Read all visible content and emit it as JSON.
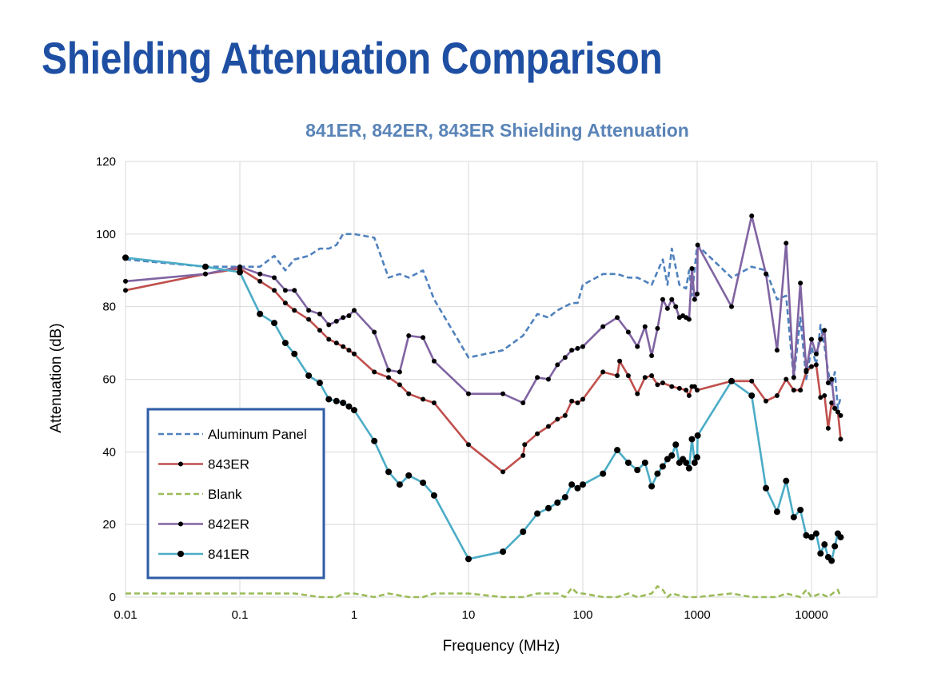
{
  "page": {
    "title": "Shielding Attenuation Comparison"
  },
  "chart_data": {
    "type": "line",
    "title": "841ER, 842ER, 843ER Shielding Attenuation",
    "xlabel": "Frequency (MHz)",
    "ylabel": "Attenuation (dB)",
    "x_scale": "log",
    "xlim": [
      0.01,
      30000
    ],
    "ylim": [
      0,
      120
    ],
    "x_ticks": [
      0.01,
      0.1,
      1,
      10,
      100,
      1000,
      10000
    ],
    "x_tick_labels": [
      "0.01",
      "0.1",
      "1",
      "10",
      "100",
      "1000",
      "10000"
    ],
    "y_ticks": [
      0,
      20,
      40,
      60,
      80,
      100,
      120
    ],
    "y_tick_labels": [
      "0",
      "20",
      "40",
      "60",
      "80",
      "100",
      "120"
    ],
    "grid": true,
    "legend_position": "bottom-left",
    "series": [
      {
        "name": "Aluminum Panel",
        "color": "#4f81bd",
        "style": "dashed",
        "markers": "none",
        "points": [
          [
            0.01,
            93
          ],
          [
            0.05,
            91
          ],
          [
            0.1,
            91
          ],
          [
            0.15,
            91
          ],
          [
            0.2,
            94
          ],
          [
            0.25,
            90
          ],
          [
            0.3,
            93
          ],
          [
            0.4,
            94
          ],
          [
            0.5,
            96
          ],
          [
            0.6,
            96
          ],
          [
            0.7,
            97
          ],
          [
            0.8,
            100
          ],
          [
            1,
            100
          ],
          [
            1.5,
            99
          ],
          [
            2,
            88
          ],
          [
            2.5,
            89
          ],
          [
            3,
            88
          ],
          [
            4,
            90
          ],
          [
            5,
            82
          ],
          [
            10,
            66
          ],
          [
            20,
            68
          ],
          [
            30,
            72
          ],
          [
            40,
            78
          ],
          [
            50,
            77
          ],
          [
            60,
            79
          ],
          [
            80,
            81
          ],
          [
            90,
            81
          ],
          [
            100,
            86
          ],
          [
            150,
            89
          ],
          [
            200,
            89
          ],
          [
            250,
            88
          ],
          [
            300,
            88
          ],
          [
            350,
            87
          ],
          [
            400,
            86
          ],
          [
            500,
            93
          ],
          [
            550,
            86
          ],
          [
            600,
            96
          ],
          [
            700,
            86
          ],
          [
            800,
            85
          ],
          [
            850,
            90
          ],
          [
            900,
            83
          ],
          [
            1000,
            97
          ],
          [
            2000,
            88
          ],
          [
            3000,
            91
          ],
          [
            4000,
            90
          ],
          [
            5000,
            82
          ],
          [
            6000,
            83
          ],
          [
            7000,
            60
          ],
          [
            8000,
            77
          ],
          [
            9000,
            60
          ],
          [
            10000,
            69
          ],
          [
            11000,
            64
          ],
          [
            12000,
            75
          ],
          [
            13000,
            69
          ],
          [
            14000,
            62
          ],
          [
            15000,
            58
          ],
          [
            16000,
            62
          ],
          [
            17000,
            52
          ],
          [
            18000,
            55
          ]
        ]
      },
      {
        "name": "843ER",
        "color": "#c0504d",
        "style": "solid",
        "markers": "small",
        "points": [
          [
            0.01,
            84.5
          ],
          [
            0.05,
            89
          ],
          [
            0.1,
            90.5
          ],
          [
            0.15,
            87
          ],
          [
            0.2,
            84.5
          ],
          [
            0.25,
            81
          ],
          [
            0.3,
            79
          ],
          [
            0.4,
            76.5
          ],
          [
            0.5,
            73.5
          ],
          [
            0.6,
            71
          ],
          [
            0.7,
            70
          ],
          [
            0.8,
            69
          ],
          [
            0.9,
            68
          ],
          [
            1,
            67
          ],
          [
            1.5,
            62
          ],
          [
            2,
            60.5
          ],
          [
            2.5,
            58.5
          ],
          [
            3,
            56
          ],
          [
            4,
            54.5
          ],
          [
            5,
            53.5
          ],
          [
            10,
            42
          ],
          [
            20,
            34.5
          ],
          [
            30,
            39
          ],
          [
            31,
            42
          ],
          [
            40,
            45
          ],
          [
            50,
            47
          ],
          [
            60,
            49
          ],
          [
            70,
            50
          ],
          [
            80,
            54
          ],
          [
            90,
            53.5
          ],
          [
            100,
            54.5
          ],
          [
            150,
            62
          ],
          [
            200,
            61
          ],
          [
            210,
            65
          ],
          [
            250,
            61
          ],
          [
            300,
            56
          ],
          [
            350,
            60.5
          ],
          [
            400,
            61
          ],
          [
            450,
            58.5
          ],
          [
            500,
            59
          ],
          [
            600,
            58
          ],
          [
            700,
            57.5
          ],
          [
            800,
            57
          ],
          [
            850,
            55.5
          ],
          [
            900,
            58
          ],
          [
            950,
            58
          ],
          [
            1000,
            57
          ],
          [
            2000,
            59.5
          ],
          [
            3000,
            59.5
          ],
          [
            4000,
            54
          ],
          [
            5000,
            55.5
          ],
          [
            6000,
            60
          ],
          [
            7000,
            57
          ],
          [
            8000,
            57
          ],
          [
            9000,
            62
          ],
          [
            10000,
            63.5
          ],
          [
            11000,
            64
          ],
          [
            12000,
            55
          ],
          [
            13000,
            55.5
          ],
          [
            14000,
            46.5
          ],
          [
            15000,
            53.5
          ],
          [
            16000,
            52
          ],
          [
            17000,
            51
          ],
          [
            18000,
            43.5
          ]
        ]
      },
      {
        "name": "Blank",
        "color": "#9bbb59",
        "style": "dashed",
        "markers": "none",
        "points": [
          [
            0.01,
            1
          ],
          [
            0.3,
            1
          ],
          [
            0.5,
            0
          ],
          [
            0.7,
            0
          ],
          [
            0.8,
            1
          ],
          [
            1,
            1
          ],
          [
            1.5,
            0
          ],
          [
            2,
            1
          ],
          [
            3,
            0
          ],
          [
            4,
            0
          ],
          [
            5,
            1
          ],
          [
            10,
            1
          ],
          [
            20,
            0
          ],
          [
            30,
            0
          ],
          [
            40,
            1
          ],
          [
            60,
            1
          ],
          [
            70,
            0
          ],
          [
            80,
            2.5
          ],
          [
            90,
            1
          ],
          [
            100,
            1
          ],
          [
            150,
            0
          ],
          [
            200,
            0
          ],
          [
            250,
            1
          ],
          [
            300,
            0
          ],
          [
            400,
            1
          ],
          [
            450,
            3
          ],
          [
            500,
            2
          ],
          [
            550,
            0
          ],
          [
            600,
            1
          ],
          [
            800,
            0
          ],
          [
            1000,
            0
          ],
          [
            2000,
            1
          ],
          [
            3000,
            0
          ],
          [
            5000,
            0
          ],
          [
            6000,
            1
          ],
          [
            8000,
            0
          ],
          [
            9000,
            2
          ],
          [
            10000,
            0
          ],
          [
            12000,
            1
          ],
          [
            14000,
            0
          ],
          [
            16000,
            1.5
          ],
          [
            17000,
            2
          ],
          [
            18000,
            0
          ]
        ]
      },
      {
        "name": "842ER",
        "color": "#8064a2",
        "style": "solid",
        "markers": "small",
        "points": [
          [
            0.01,
            87
          ],
          [
            0.05,
            89
          ],
          [
            0.1,
            91
          ],
          [
            0.15,
            89
          ],
          [
            0.2,
            88
          ],
          [
            0.25,
            84.5
          ],
          [
            0.3,
            84.5
          ],
          [
            0.4,
            79
          ],
          [
            0.5,
            78
          ],
          [
            0.6,
            75
          ],
          [
            0.7,
            76
          ],
          [
            0.8,
            77
          ],
          [
            0.9,
            77.5
          ],
          [
            1,
            79
          ],
          [
            1.5,
            73
          ],
          [
            2,
            62.5
          ],
          [
            2.5,
            62
          ],
          [
            3,
            72
          ],
          [
            4,
            71.5
          ],
          [
            5,
            65
          ],
          [
            10,
            56
          ],
          [
            20,
            56
          ],
          [
            30,
            53.5
          ],
          [
            40,
            60.5
          ],
          [
            50,
            60
          ],
          [
            60,
            64
          ],
          [
            70,
            66
          ],
          [
            80,
            68
          ],
          [
            90,
            68.5
          ],
          [
            100,
            69
          ],
          [
            150,
            74.5
          ],
          [
            200,
            77
          ],
          [
            250,
            73
          ],
          [
            300,
            69
          ],
          [
            350,
            74.5
          ],
          [
            400,
            66.5
          ],
          [
            450,
            74
          ],
          [
            500,
            82
          ],
          [
            550,
            79.5
          ],
          [
            600,
            82
          ],
          [
            650,
            80
          ],
          [
            700,
            77
          ],
          [
            750,
            77.5
          ],
          [
            800,
            77
          ],
          [
            850,
            76.5
          ],
          [
            900,
            90.5
          ],
          [
            950,
            82
          ],
          [
            1000,
            83.5
          ],
          [
            1010,
            97
          ],
          [
            2000,
            80
          ],
          [
            3000,
            105
          ],
          [
            4000,
            89
          ],
          [
            5000,
            68
          ],
          [
            6000,
            97.5
          ],
          [
            7000,
            60.5
          ],
          [
            8000,
            86.5
          ],
          [
            9000,
            62.5
          ],
          [
            10000,
            71
          ],
          [
            11000,
            67
          ],
          [
            12000,
            71
          ],
          [
            13000,
            73.5
          ],
          [
            14000,
            59
          ],
          [
            15000,
            60
          ],
          [
            16000,
            52
          ],
          [
            17000,
            51
          ],
          [
            18000,
            50
          ]
        ]
      },
      {
        "name": "841ER",
        "color": "#4bacc6",
        "style": "solid",
        "markers": "large",
        "points": [
          [
            0.01,
            93.5
          ],
          [
            0.05,
            91
          ],
          [
            0.1,
            89.5
          ],
          [
            0.15,
            78
          ],
          [
            0.2,
            75.5
          ],
          [
            0.25,
            70
          ],
          [
            0.3,
            67
          ],
          [
            0.4,
            61
          ],
          [
            0.5,
            59
          ],
          [
            0.6,
            54.5
          ],
          [
            0.7,
            54
          ],
          [
            0.8,
            53.5
          ],
          [
            0.9,
            52.5
          ],
          [
            1,
            51.5
          ],
          [
            1.5,
            43
          ],
          [
            2,
            34.5
          ],
          [
            2.5,
            31
          ],
          [
            3,
            33.5
          ],
          [
            4,
            31.5
          ],
          [
            5,
            28
          ],
          [
            10,
            10.5
          ],
          [
            20,
            12.5
          ],
          [
            30,
            18
          ],
          [
            40,
            23
          ],
          [
            50,
            24.5
          ],
          [
            60,
            26
          ],
          [
            70,
            27.5
          ],
          [
            80,
            31
          ],
          [
            90,
            30
          ],
          [
            100,
            31
          ],
          [
            150,
            34
          ],
          [
            200,
            40.5
          ],
          [
            250,
            37
          ],
          [
            300,
            35
          ],
          [
            350,
            37
          ],
          [
            400,
            30.5
          ],
          [
            450,
            34
          ],
          [
            500,
            36
          ],
          [
            550,
            38
          ],
          [
            600,
            39
          ],
          [
            650,
            42
          ],
          [
            700,
            37
          ],
          [
            750,
            38
          ],
          [
            800,
            37
          ],
          [
            850,
            35.5
          ],
          [
            900,
            43.5
          ],
          [
            950,
            37
          ],
          [
            1000,
            38.5
          ],
          [
            1010,
            44.5
          ],
          [
            2000,
            59.5
          ],
          [
            3000,
            55.5
          ],
          [
            4000,
            30
          ],
          [
            5000,
            23.5
          ],
          [
            6000,
            32
          ],
          [
            7000,
            22
          ],
          [
            8000,
            24
          ],
          [
            9000,
            17
          ],
          [
            10000,
            16.5
          ],
          [
            11000,
            17.5
          ],
          [
            12000,
            12
          ],
          [
            13000,
            14.5
          ],
          [
            14000,
            11
          ],
          [
            15000,
            10
          ],
          [
            16000,
            14
          ],
          [
            17000,
            17.5
          ],
          [
            18000,
            16.5
          ]
        ]
      }
    ]
  }
}
